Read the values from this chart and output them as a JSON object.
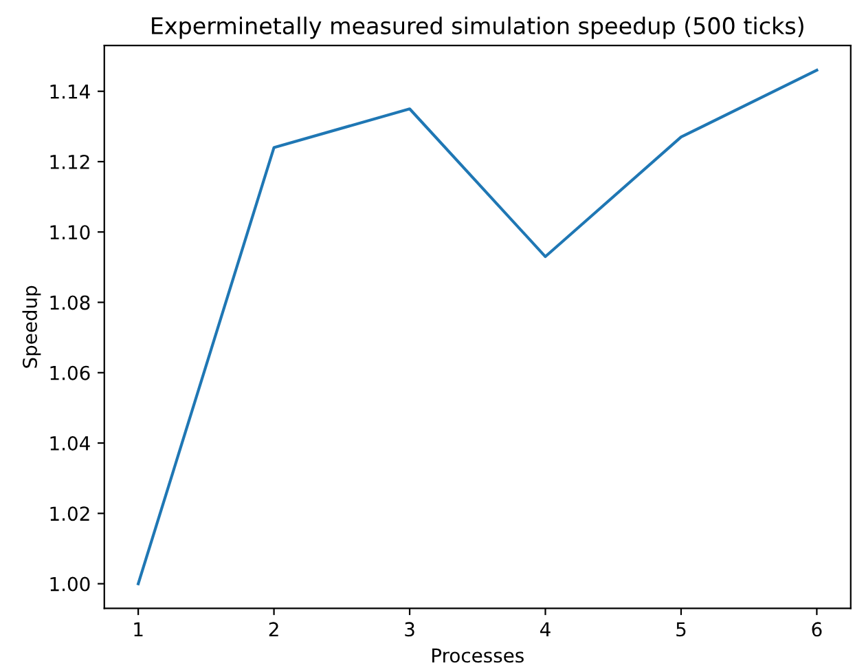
{
  "chart_data": {
    "type": "line",
    "title": "Experminetally measured simulation speedup (500 ticks)",
    "xlabel": "Processes",
    "ylabel": "Speedup",
    "x": [
      1,
      2,
      3,
      4,
      5,
      6
    ],
    "series": [
      {
        "color": "#1f77b4",
        "values": [
          1.0,
          1.124,
          1.135,
          1.093,
          1.127,
          1.146
        ]
      }
    ],
    "xlim": [
      0.75,
      6.25
    ],
    "xticks": [
      1,
      2,
      3,
      4,
      5,
      6
    ],
    "ylim": [
      0.993,
      1.153
    ],
    "yticks": [
      {
        "value": 1.0,
        "label": "1.00"
      },
      {
        "value": 1.02,
        "label": "1.02"
      },
      {
        "value": 1.04,
        "label": "1.04"
      },
      {
        "value": 1.06,
        "label": "1.06"
      },
      {
        "value": 1.08,
        "label": "1.08"
      },
      {
        "value": 1.1,
        "label": "1.10"
      },
      {
        "value": 1.12,
        "label": "1.12"
      },
      {
        "value": 1.14,
        "label": "1.14"
      }
    ],
    "grid": false,
    "legend": false
  }
}
